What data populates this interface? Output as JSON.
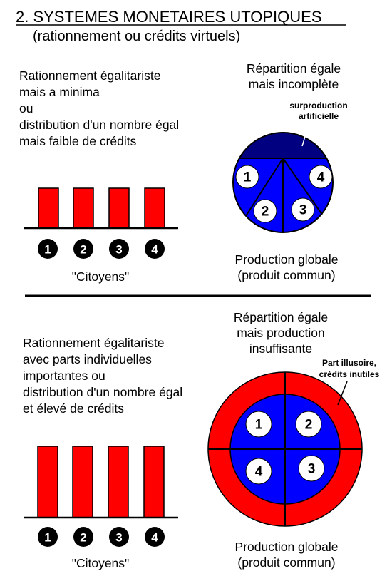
{
  "title": "2. SYSTEMES MONETAIRES UTOPIQUES",
  "subtitle": "(rationnement ou crédits virtuels)",
  "sections": [
    {
      "description": [
        "Rationnement égalitariste",
        "mais a minima",
        "ou",
        "distribution d'un nombre égal",
        "mais faible de crédits"
      ],
      "diagram_title": [
        "Répartition égale",
        "mais incomplète"
      ],
      "annotation": [
        "surproduction",
        "artificielle"
      ],
      "slices": [
        "1",
        "4",
        "2",
        "3"
      ],
      "citizens": [
        "1",
        "2",
        "3",
        "4"
      ],
      "citizens_label": "\"Citoyens\"",
      "production_label": [
        "Production globale",
        "(produit commun)"
      ]
    },
    {
      "description": [
        "Rationnement égalitariste",
        "avec parts individuelles",
        "importantes ou",
        "distribution d'un nombre égal",
        "et élevé de crédits"
      ],
      "diagram_title": [
        "Répartition égale",
        "mais production",
        "insuffisante"
      ],
      "annotation": [
        "Part illusoire,",
        "crédits inutiles"
      ],
      "slices": [
        "1",
        "2",
        "4",
        "3"
      ],
      "citizens": [
        "1",
        "2",
        "3",
        "4"
      ],
      "citizens_label": "\"Citoyens\"",
      "production_label": [
        "Production globale",
        "(produit commun)"
      ]
    }
  ]
}
